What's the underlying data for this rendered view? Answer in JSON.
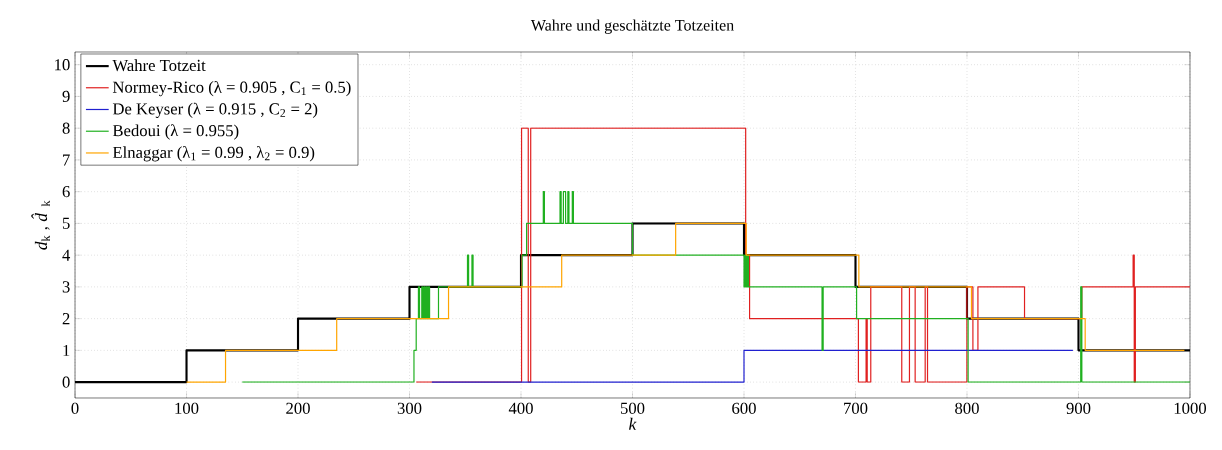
{
  "chart_data": {
    "type": "step",
    "title": "Wahre und geschätzte Totzeiten",
    "xlabel": "*k*",
    "ylabel": "*d*$_{k}$ , *d̂*$_{k}$",
    "xlim": [
      0,
      1000
    ],
    "ylim": [
      -0.5,
      10.4
    ],
    "xticks": [
      0,
      100,
      200,
      300,
      400,
      500,
      600,
      700,
      800,
      900,
      1000
    ],
    "yticks": [
      0,
      1,
      2,
      3,
      4,
      5,
      6,
      7,
      8,
      9,
      10
    ],
    "grid": true,
    "legend": "top left",
    "line_style": "solid",
    "marker": "none",
    "series": [
      {
        "name": "Wahre Totzeit",
        "color": "#000000",
        "x": [
          0,
          100,
          200,
          300,
          400,
          500,
          600,
          700,
          800,
          900,
          1000
        ],
        "values": [
          0,
          1,
          2,
          3,
          4,
          5,
          4,
          3,
          2,
          1,
          1
        ]
      },
      {
        "name": "Normey-Rico (λ = 0.905 , C$_{1}$ = 0.5)",
        "color": "#e02020",
        "x": [
          306,
          400.5,
          406.5,
          408.7,
          601.5,
          605,
          702.6,
          709.5,
          710.5,
          713.7,
          741.5,
          748.4,
          753.5,
          762.5,
          764.6,
          799.9,
          805.3,
          809.8,
          851.6,
          903,
          949,
          950,
          951,
          1000
        ],
        "values": [
          0,
          8,
          0,
          8,
          4,
          2,
          0,
          2,
          0,
          3,
          0,
          3,
          0,
          3,
          0,
          3,
          1,
          3,
          2,
          3,
          4,
          0,
          3,
          3
        ]
      },
      {
        "name": "De Keyser (λ = 0.915 , C$_{2}$ = 2)",
        "color": "#2020d0",
        "x": [
          320,
          600,
          895
        ],
        "values": [
          0,
          1,
          1
        ]
      },
      {
        "name": "Bedoui (λ = 0.955)",
        "color": "#20b020",
        "x": [
          150,
          304,
          306,
          308,
          309,
          311,
          312,
          313,
          314,
          315,
          316,
          317,
          318,
          326,
          352,
          353,
          356,
          357,
          401,
          405,
          420,
          421,
          435,
          436,
          438,
          440,
          442,
          443,
          446,
          447,
          500,
          600,
          601,
          602,
          603,
          604,
          670,
          671,
          701,
          801,
          902,
          903,
          1000
        ],
        "values": [
          0,
          1,
          2,
          3,
          2,
          3,
          2,
          3,
          2,
          3,
          2,
          3,
          2,
          3,
          4,
          3,
          4,
          3,
          4,
          5,
          6,
          5,
          6,
          5,
          6,
          5,
          6,
          5,
          6,
          5,
          4,
          3,
          4,
          3,
          4,
          3,
          1,
          3,
          2,
          0,
          3,
          0,
          0
        ]
      },
      {
        "name": "Elnaggar (λ$_{1}$ = 0.99 , λ$_{2}$ = 0.9)",
        "color": "#ffa500",
        "x": [
          100,
          135,
          234.7,
          335,
          436.5,
          538.7,
          602,
          703,
          804,
          906,
          995
        ],
        "values": [
          0,
          1,
          2,
          3,
          4,
          5,
          4,
          3,
          2,
          1,
          1
        ]
      }
    ]
  }
}
